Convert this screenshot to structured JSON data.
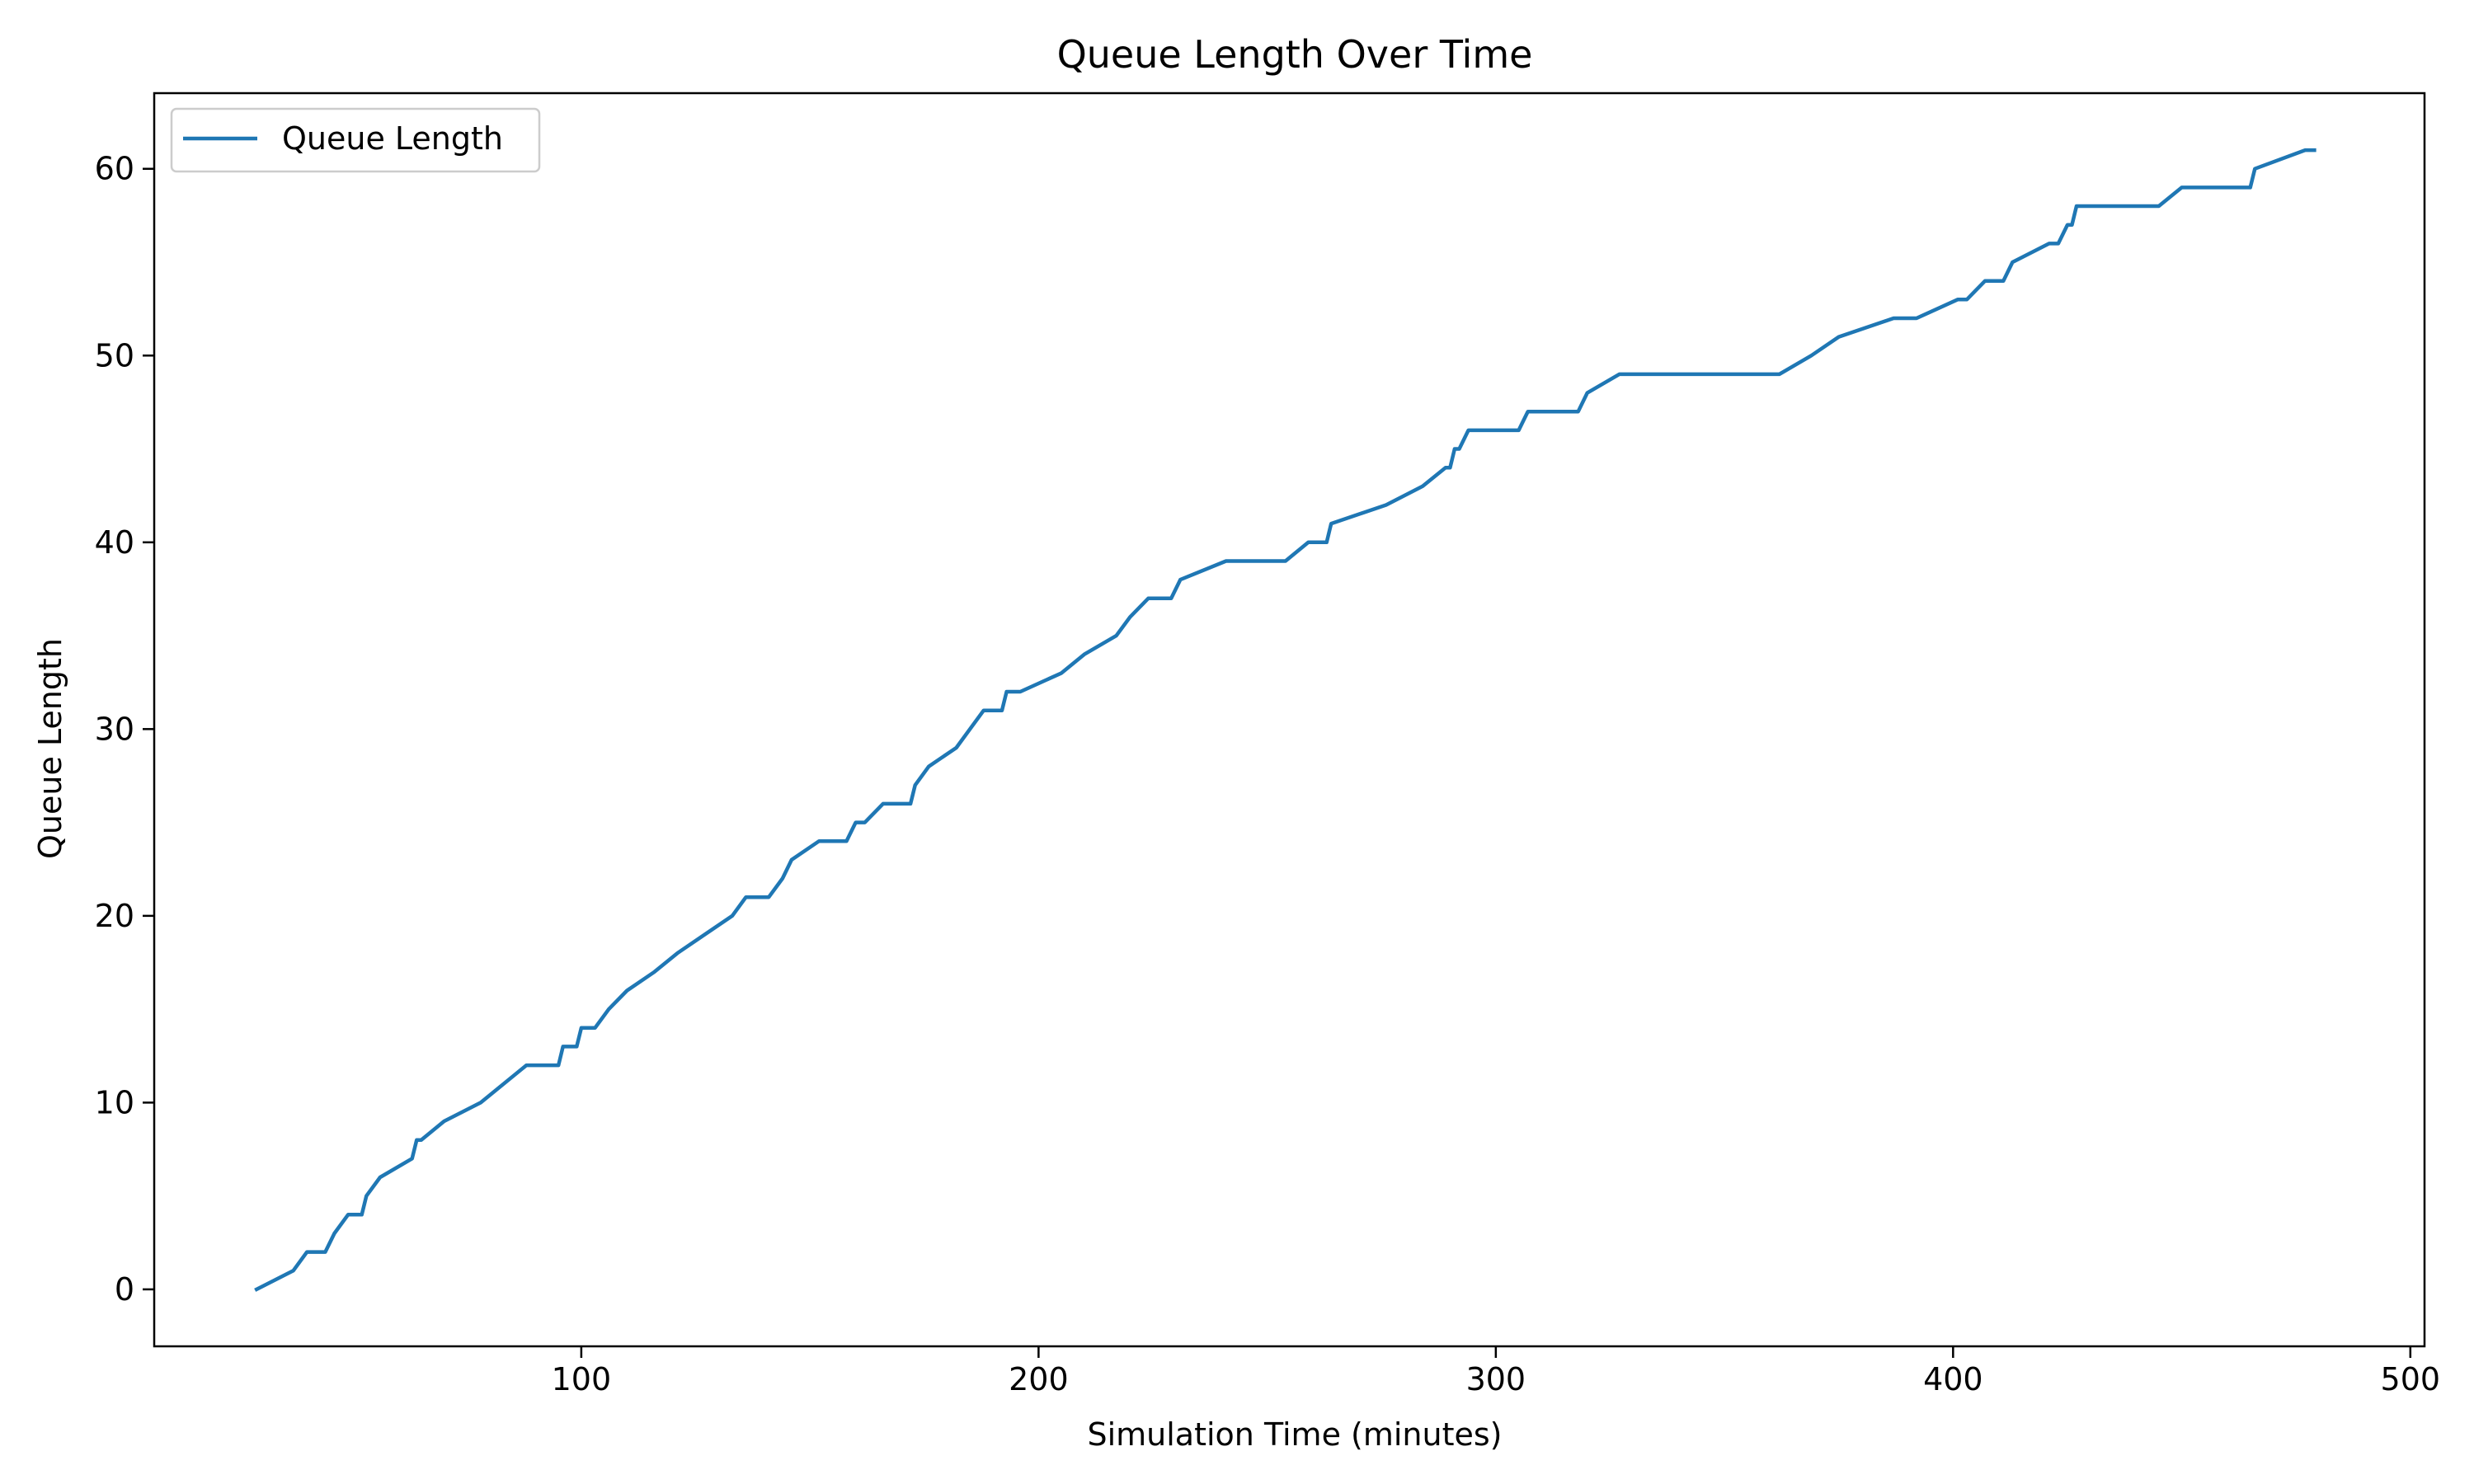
{
  "chart_data": {
    "type": "line",
    "title": "Queue Length Over Time",
    "xlabel": "Simulation Time (minutes)",
    "ylabel": "Queue Length",
    "xlim": [
      6.6,
      503.1
    ],
    "ylim": [
      -3.05,
      64.05
    ],
    "xticks": [
      100,
      200,
      300,
      400,
      500
    ],
    "yticks": [
      0,
      10,
      20,
      30,
      40,
      50,
      60
    ],
    "x_tick_labels": [
      "100",
      "200",
      "300",
      "400",
      "500"
    ],
    "y_tick_labels": [
      "0",
      "10",
      "20",
      "30",
      "40",
      "50",
      "60"
    ],
    "grid": false,
    "legend": {
      "position": "top-left",
      "entries": [
        "Queue Length"
      ]
    },
    "series": [
      {
        "name": "Queue Length",
        "color": "#1f77b4",
        "x": [
          29,
          37,
          40,
          44,
          46,
          49,
          52,
          53,
          56,
          63,
          64,
          65,
          70,
          78,
          88,
          95,
          96,
          99,
          100,
          103,
          106,
          110,
          116,
          121,
          127,
          133,
          136,
          141,
          144,
          146,
          152,
          158,
          160,
          162,
          166,
          172,
          173,
          176,
          182,
          185,
          188,
          192,
          193,
          196,
          205,
          210,
          217,
          220,
          224,
          229,
          231,
          241,
          254,
          259,
          263,
          264,
          276,
          284,
          289,
          290,
          291,
          292,
          294,
          296,
          305,
          307,
          318,
          320,
          327,
          362,
          369,
          375,
          387,
          392,
          401,
          403,
          407,
          411,
          413,
          421,
          423,
          425,
          426,
          427,
          445,
          450,
          465,
          466,
          477,
          479
        ],
        "y": [
          0,
          1,
          2,
          2,
          3,
          4,
          4,
          5,
          6,
          7,
          8,
          8,
          9,
          10,
          12,
          12,
          13,
          13,
          14,
          14,
          15,
          16,
          17,
          18,
          19,
          20,
          21,
          21,
          22,
          23,
          24,
          24,
          25,
          25,
          26,
          26,
          27,
          28,
          29,
          30,
          31,
          31,
          32,
          32,
          33,
          34,
          35,
          36,
          37,
          37,
          38,
          39,
          39,
          40,
          40,
          41,
          42,
          43,
          44,
          44,
          45,
          45,
          46,
          46,
          46,
          47,
          47,
          48,
          49,
          49,
          50,
          51,
          52,
          52,
          53,
          53,
          54,
          54,
          55,
          56,
          56,
          57,
          57,
          58,
          58,
          59,
          59,
          60,
          61,
          61
        ]
      }
    ]
  }
}
